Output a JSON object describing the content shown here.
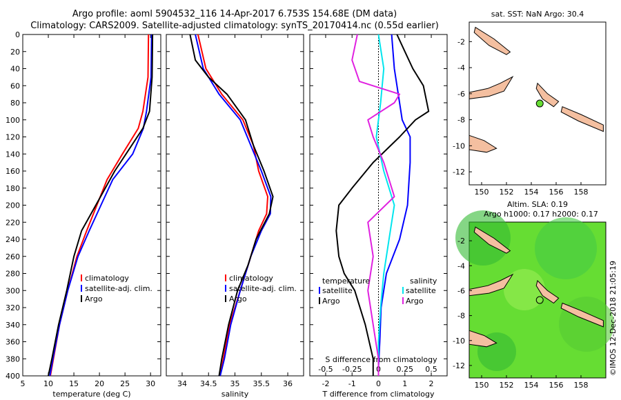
{
  "title": {
    "line1": "Argo profile: aoml 5904532_116 14-Apr-2017 6.753S 154.68E (DM data)",
    "line2": "Climatology: CARS2009. Satellite-adjusted climatology: synTS_20170414.nc (0.55d earlier)"
  },
  "depth_ticks": [
    "0",
    "20",
    "40",
    "60",
    "80",
    "100",
    "120",
    "140",
    "160",
    "180",
    "200",
    "220",
    "240",
    "260",
    "280",
    "300",
    "320",
    "340",
    "360",
    "380",
    "400"
  ],
  "colors": {
    "climatology": "#ff0000",
    "satellite": "#0000ff",
    "argo": "#000000",
    "sat_salinity": "#00e5ee",
    "argo_salinity": "#e020e0",
    "land": "#f4bfa0",
    "sla_sea": "#66dd33"
  },
  "chart_data": [
    {
      "type": "line",
      "id": "temperature",
      "xlabel": "temperature (deg C)",
      "ylabel": "depth",
      "xlim": [
        5,
        32
      ],
      "ylim": [
        400,
        0
      ],
      "xticks": [
        "5",
        "10",
        "15",
        "20",
        "25",
        "30"
      ],
      "legend": [
        "climatology",
        "satellite-adj. clim.",
        "Argo"
      ],
      "series": [
        {
          "name": "climatology",
          "depth": [
            0,
            50,
            90,
            110,
            140,
            170,
            200,
            230,
            260,
            300,
            340,
            380,
            400
          ],
          "values": [
            29.6,
            29.5,
            28.5,
            27.6,
            24.5,
            21.5,
            19.5,
            17.5,
            15.6,
            13.8,
            12.2,
            11,
            10.4
          ]
        },
        {
          "name": "satellite-adj. clim.",
          "depth": [
            0,
            50,
            90,
            110,
            140,
            170,
            200,
            230,
            260,
            300,
            340,
            380,
            400
          ],
          "values": [
            30.2,
            30.1,
            29.2,
            28.6,
            26.5,
            22.6,
            20.3,
            18,
            15.8,
            13.8,
            12.2,
            10.9,
            10.3
          ]
        },
        {
          "name": "Argo",
          "depth": [
            0,
            50,
            90,
            110,
            140,
            160,
            200,
            230,
            260,
            300,
            340,
            380,
            400
          ],
          "values": [
            30.4,
            30.3,
            29.8,
            28.5,
            25.2,
            23,
            19.3,
            16.5,
            15,
            13.6,
            12,
            10.7,
            10
          ]
        }
      ]
    },
    {
      "type": "line",
      "id": "salinity",
      "xlabel": "salinity",
      "ylabel": "depth",
      "xlim": [
        33.7,
        36.3
      ],
      "ylim": [
        400,
        0
      ],
      "xticks": [
        "34",
        "34.5",
        "35",
        "35.5",
        "36"
      ],
      "legend": [
        "climatology",
        "satellite-adj. clim.",
        "Argo"
      ],
      "series": [
        {
          "name": "climatology",
          "depth": [
            0,
            40,
            70,
            100,
            130,
            160,
            190,
            210,
            230,
            260,
            300,
            340,
            380,
            400
          ],
          "values": [
            34.3,
            34.45,
            34.75,
            35.15,
            35.35,
            35.45,
            35.62,
            35.6,
            35.45,
            35.3,
            35.1,
            34.9,
            34.78,
            34.72
          ]
        },
        {
          "name": "satellite-adj. clim.",
          "depth": [
            0,
            40,
            70,
            100,
            130,
            160,
            190,
            210,
            230,
            260,
            300,
            340,
            380,
            400
          ],
          "values": [
            34.25,
            34.4,
            34.7,
            35.1,
            35.3,
            35.5,
            35.68,
            35.67,
            35.5,
            35.3,
            35.1,
            34.92,
            34.8,
            34.72
          ]
        },
        {
          "name": "Argo",
          "depth": [
            0,
            30,
            50,
            70,
            100,
            130,
            160,
            190,
            210,
            240,
            270,
            300,
            340,
            380,
            400
          ],
          "values": [
            34.15,
            34.25,
            34.5,
            34.85,
            35.2,
            35.35,
            35.55,
            35.72,
            35.65,
            35.4,
            35.25,
            35.05,
            34.88,
            34.75,
            34.7
          ]
        }
      ]
    },
    {
      "type": "line",
      "id": "differences",
      "xlabel": "T difference from climatology",
      "x2label": "S difference from climatology",
      "xlim": [
        -2.6,
        2.6
      ],
      "ylim": [
        400,
        0
      ],
      "xticks": [
        "-2",
        "-1",
        "0",
        "1",
        "2"
      ],
      "x2ticks": [
        "-0.5",
        "-0.25",
        "0",
        "0.25",
        "0.5"
      ],
      "legend_temperature": {
        "title": "temperature",
        "items": [
          "satellite",
          "Argo"
        ]
      },
      "legend_salinity": {
        "title": "salinity",
        "items": [
          "satellite",
          "Argo"
        ]
      },
      "series": [
        {
          "name": "temperature satellite",
          "depth": [
            0,
            40,
            80,
            100,
            120,
            150,
            200,
            240,
            280,
            320,
            360,
            390,
            400
          ],
          "values": [
            0.5,
            0.6,
            0.8,
            0.9,
            1.2,
            1.2,
            1.1,
            0.8,
            0.3,
            0.1,
            0.05,
            0,
            0
          ]
        },
        {
          "name": "temperature Argo",
          "depth": [
            0,
            20,
            40,
            60,
            90,
            100,
            120,
            150,
            180,
            200,
            230,
            260,
            280,
            300,
            340,
            380,
            400
          ],
          "values": [
            0.7,
            1.0,
            1.3,
            1.7,
            1.9,
            1.4,
            0.8,
            -0.2,
            -1.0,
            -1.5,
            -1.6,
            -1.5,
            -1.3,
            -0.9,
            -0.5,
            -0.2,
            -0.2
          ]
        },
        {
          "name": "salinity satellite",
          "depth": [
            0,
            40,
            80,
            120,
            160,
            200,
            240,
            280,
            320,
            360,
            400
          ],
          "values": [
            0.0,
            0.05,
            0.02,
            -0.02,
            0.05,
            0.15,
            0.1,
            0.05,
            0.02,
            0,
            0
          ]
        },
        {
          "name": "salinity Argo",
          "depth": [
            0,
            30,
            55,
            70,
            80,
            100,
            120,
            150,
            190,
            220,
            260,
            300,
            340,
            380,
            400
          ],
          "values": [
            -0.2,
            -0.25,
            -0.18,
            0.2,
            0.15,
            -0.1,
            -0.05,
            0.05,
            0.15,
            -0.1,
            -0.05,
            -0.1,
            -0.05,
            0,
            0
          ]
        }
      ]
    },
    {
      "type": "map",
      "id": "sst_map",
      "title": "sat. SST: NaN Argo: 30.4",
      "xticks": [
        "150",
        "152",
        "154",
        "156",
        "158"
      ],
      "yticks": [
        "-2",
        "-4",
        "-6",
        "-8",
        "-10",
        "-12"
      ],
      "xlim": [
        149,
        160
      ],
      "ylim": [
        -13,
        -0.5
      ],
      "argo_position": {
        "lon": 154.68,
        "lat": -6.753
      }
    },
    {
      "type": "map",
      "id": "sla_map",
      "title": "Altim. SLA: 0.19",
      "subtitle": "Argo h1000: 0.17 h2000: 0.17",
      "xticks": [
        "150",
        "152",
        "154",
        "156",
        "158"
      ],
      "yticks": [
        "-2",
        "-4",
        "-6",
        "-8",
        "-10",
        "-12"
      ],
      "xlim": [
        149,
        160
      ],
      "ylim": [
        -13,
        -0.5
      ],
      "argo_position": {
        "lon": 154.68,
        "lat": -6.753
      },
      "credit": "©IMOS 12-Dec-2018 21:05:19"
    }
  ]
}
